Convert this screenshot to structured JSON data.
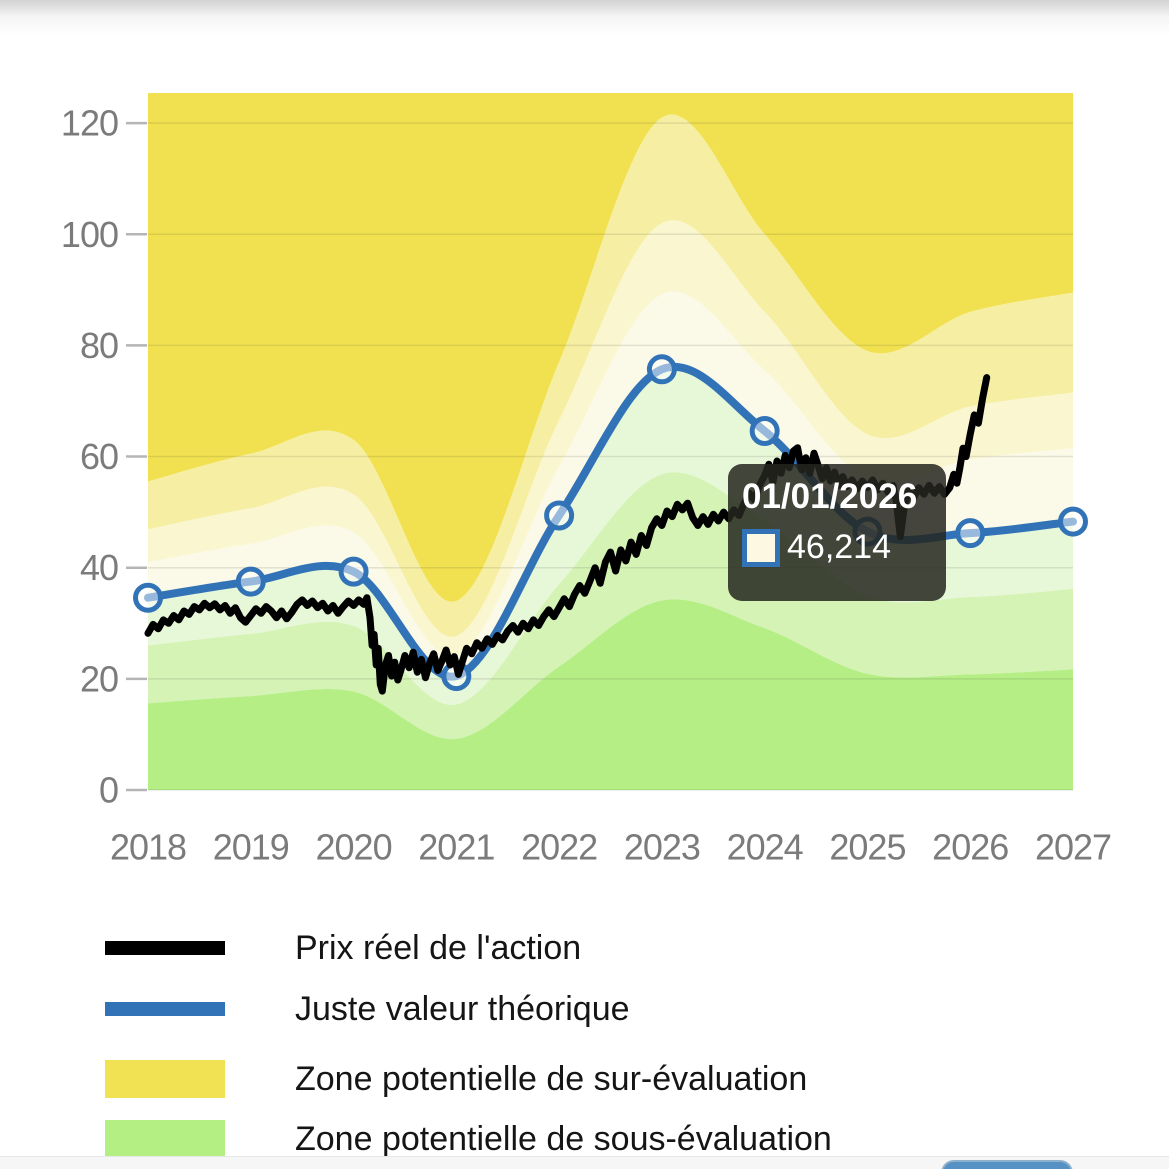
{
  "chart_data": {
    "type": "area",
    "title": "",
    "xlabel": "",
    "ylabel": "",
    "x_ticks": [
      "2018",
      "2019",
      "2020",
      "2021",
      "2022",
      "2023",
      "2024",
      "2025",
      "2026",
      "2027"
    ],
    "y_ticks": [
      "0",
      "20",
      "40",
      "60",
      "80",
      "100",
      "120"
    ],
    "y_tick_values": [
      0,
      20,
      40,
      60,
      80,
      100,
      120
    ],
    "ylim": [
      0,
      125.5
    ],
    "xlim": [
      2018,
      2027
    ],
    "grid": "horizontal",
    "fair_value": {
      "name": "Juste valeur théorique",
      "color": "#3273b8",
      "years": [
        2018,
        2019,
        2020,
        2021,
        2022,
        2023,
        2024,
        2025,
        2026,
        2027
      ],
      "values": [
        34.6,
        37.5,
        39.3,
        20.5,
        49.4,
        75.7,
        64.6,
        46.5,
        46.214,
        48.3
      ]
    },
    "price": {
      "name": "Prix réel de l'action",
      "color": "#000000",
      "points": [
        [
          2018.0,
          28.2
        ],
        [
          2018.05,
          29.8
        ],
        [
          2018.1,
          29.0
        ],
        [
          2018.15,
          30.6
        ],
        [
          2018.2,
          30.0
        ],
        [
          2018.25,
          31.4
        ],
        [
          2018.3,
          30.6
        ],
        [
          2018.35,
          32.2
        ],
        [
          2018.4,
          31.6
        ],
        [
          2018.45,
          33.0
        ],
        [
          2018.5,
          32.4
        ],
        [
          2018.55,
          33.6
        ],
        [
          2018.6,
          32.8
        ],
        [
          2018.65,
          33.5
        ],
        [
          2018.7,
          32.4
        ],
        [
          2018.75,
          33.2
        ],
        [
          2018.8,
          31.8
        ],
        [
          2018.85,
          32.8
        ],
        [
          2018.9,
          31.0
        ],
        [
          2018.95,
          30.2
        ],
        [
          2019.0,
          31.4
        ],
        [
          2019.05,
          32.6
        ],
        [
          2019.1,
          31.8
        ],
        [
          2019.15,
          33.0
        ],
        [
          2019.2,
          32.2
        ],
        [
          2019.25,
          31.0
        ],
        [
          2019.3,
          32.2
        ],
        [
          2019.35,
          30.8
        ],
        [
          2019.4,
          32.0
        ],
        [
          2019.45,
          33.4
        ],
        [
          2019.5,
          34.2
        ],
        [
          2019.55,
          33.2
        ],
        [
          2019.6,
          34.0
        ],
        [
          2019.65,
          32.8
        ],
        [
          2019.7,
          33.6
        ],
        [
          2019.75,
          32.2
        ],
        [
          2019.8,
          33.2
        ],
        [
          2019.85,
          31.8
        ],
        [
          2019.9,
          33.0
        ],
        [
          2019.95,
          34.0
        ],
        [
          2020.0,
          33.2
        ],
        [
          2020.05,
          34.2
        ],
        [
          2020.1,
          33.4
        ],
        [
          2020.13,
          34.6
        ],
        [
          2020.16,
          31.0
        ],
        [
          2020.18,
          26.0
        ],
        [
          2020.2,
          28.0
        ],
        [
          2020.22,
          22.5
        ],
        [
          2020.24,
          25.5
        ],
        [
          2020.26,
          19.0
        ],
        [
          2020.28,
          17.8
        ],
        [
          2020.31,
          22.5
        ],
        [
          2020.34,
          24.2
        ],
        [
          2020.37,
          20.5
        ],
        [
          2020.4,
          23.0
        ],
        [
          2020.43,
          19.8
        ],
        [
          2020.46,
          21.5
        ],
        [
          2020.5,
          24.2
        ],
        [
          2020.54,
          22.0
        ],
        [
          2020.58,
          24.8
        ],
        [
          2020.62,
          21.2
        ],
        [
          2020.66,
          23.5
        ],
        [
          2020.7,
          20.2
        ],
        [
          2020.74,
          22.8
        ],
        [
          2020.78,
          24.5
        ],
        [
          2020.82,
          21.5
        ],
        [
          2020.86,
          23.2
        ],
        [
          2020.9,
          25.2
        ],
        [
          2020.94,
          22.5
        ],
        [
          2020.98,
          24.0
        ],
        [
          2021.02,
          20.8
        ],
        [
          2021.06,
          23.2
        ],
        [
          2021.1,
          25.5
        ],
        [
          2021.15,
          24.5
        ],
        [
          2021.2,
          26.5
        ],
        [
          2021.25,
          25.5
        ],
        [
          2021.3,
          27.2
        ],
        [
          2021.35,
          26.2
        ],
        [
          2021.4,
          27.8
        ],
        [
          2021.45,
          27.0
        ],
        [
          2021.5,
          28.6
        ],
        [
          2021.55,
          29.6
        ],
        [
          2021.6,
          28.4
        ],
        [
          2021.65,
          30.0
        ],
        [
          2021.7,
          29.0
        ],
        [
          2021.75,
          30.6
        ],
        [
          2021.8,
          29.6
        ],
        [
          2021.85,
          31.2
        ],
        [
          2021.9,
          32.4
        ],
        [
          2021.95,
          31.2
        ],
        [
          2022.0,
          32.8
        ],
        [
          2022.05,
          34.4
        ],
        [
          2022.1,
          33.0
        ],
        [
          2022.15,
          35.2
        ],
        [
          2022.2,
          36.8
        ],
        [
          2022.25,
          35.4
        ],
        [
          2022.3,
          37.6
        ],
        [
          2022.35,
          40.0
        ],
        [
          2022.4,
          37.2
        ],
        [
          2022.45,
          41.0
        ],
        [
          2022.5,
          42.8
        ],
        [
          2022.55,
          39.4
        ],
        [
          2022.6,
          43.2
        ],
        [
          2022.65,
          41.2
        ],
        [
          2022.7,
          44.6
        ],
        [
          2022.75,
          42.4
        ],
        [
          2022.8,
          45.8
        ],
        [
          2022.85,
          44.0
        ],
        [
          2022.9,
          47.2
        ],
        [
          2022.95,
          48.8
        ],
        [
          2023.0,
          47.6
        ],
        [
          2023.05,
          50.2
        ],
        [
          2023.1,
          49.2
        ],
        [
          2023.15,
          51.4
        ],
        [
          2023.2,
          50.4
        ],
        [
          2023.25,
          51.6
        ],
        [
          2023.3,
          49.0
        ],
        [
          2023.35,
          47.6
        ],
        [
          2023.4,
          49.2
        ],
        [
          2023.45,
          47.8
        ],
        [
          2023.5,
          49.6
        ],
        [
          2023.55,
          48.4
        ],
        [
          2023.6,
          50.0
        ],
        [
          2023.65,
          48.8
        ],
        [
          2023.7,
          50.4
        ],
        [
          2023.75,
          49.4
        ],
        [
          2023.8,
          51.6
        ],
        [
          2023.85,
          53.4
        ],
        [
          2023.9,
          52.2
        ],
        [
          2023.95,
          54.8
        ],
        [
          2024.0,
          56.6
        ],
        [
          2024.04,
          58.6
        ],
        [
          2024.08,
          55.4
        ],
        [
          2024.12,
          59.2
        ],
        [
          2024.16,
          57.0
        ],
        [
          2024.2,
          60.2
        ],
        [
          2024.24,
          58.0
        ],
        [
          2024.28,
          61.0
        ],
        [
          2024.32,
          61.6
        ],
        [
          2024.36,
          57.6
        ],
        [
          2024.4,
          59.8
        ],
        [
          2024.44,
          57.0
        ],
        [
          2024.48,
          60.6
        ],
        [
          2024.52,
          58.4
        ],
        [
          2024.56,
          56.0
        ],
        [
          2024.6,
          58.0
        ],
        [
          2024.64,
          55.6
        ],
        [
          2024.68,
          57.2
        ],
        [
          2024.72,
          54.8
        ],
        [
          2024.76,
          56.4
        ],
        [
          2024.8,
          54.6
        ],
        [
          2024.85,
          55.8
        ],
        [
          2024.9,
          54.2
        ],
        [
          2024.95,
          55.6
        ],
        [
          2025.0,
          54.4
        ],
        [
          2025.05,
          55.8
        ],
        [
          2025.1,
          54.0
        ],
        [
          2025.15,
          55.2
        ],
        [
          2025.2,
          53.6
        ],
        [
          2025.25,
          54.8
        ],
        [
          2025.28,
          52.0
        ],
        [
          2025.32,
          45.6
        ],
        [
          2025.36,
          51.0
        ],
        [
          2025.4,
          53.8
        ],
        [
          2025.45,
          52.6
        ],
        [
          2025.5,
          54.4
        ],
        [
          2025.55,
          53.2
        ],
        [
          2025.6,
          54.8
        ],
        [
          2025.65,
          53.4
        ],
        [
          2025.7,
          54.6
        ],
        [
          2025.75,
          53.2
        ],
        [
          2025.8,
          54.4
        ],
        [
          2025.84,
          56.8
        ],
        [
          2025.87,
          55.2
        ],
        [
          2025.9,
          58.0
        ],
        [
          2025.93,
          61.5
        ],
        [
          2025.96,
          60.0
        ],
        [
          2026.0,
          64.0
        ],
        [
          2026.04,
          67.5
        ],
        [
          2026.08,
          66.0
        ],
        [
          2026.12,
          70.5
        ],
        [
          2026.16,
          74.2
        ]
      ]
    },
    "bands": {
      "note": "smoothed boundaries as multiples of fair value",
      "colors_top_to_bottom": [
        "#f1e151",
        "#f6efa3",
        "#faf6d0",
        "#fbf9e7",
        "#e7f8d8",
        "#d4f3b5",
        "#b4ee85"
      ],
      "boundaries": [
        {
          "multiple": 1.6,
          "values": [
            55.5,
            60.5,
            63.0,
            34.0,
            77.0,
            121.0,
            100.0,
            79.0,
            86.0,
            89.5
          ]
        },
        {
          "multiple": 1.35,
          "values": [
            46.9,
            50.7,
            53.2,
            27.7,
            66.5,
            102.0,
            86.0,
            64.0,
            69.0,
            71.5
          ]
        },
        {
          "multiple": 1.18,
          "values": [
            41.0,
            44.3,
            46.4,
            24.2,
            58.2,
            89.2,
            75.5,
            56.0,
            59.5,
            61.5
          ]
        },
        {
          "multiple": 1.0,
          "values": [
            34.6,
            37.5,
            39.3,
            20.5,
            49.4,
            75.7,
            64.6,
            46.5,
            46.2,
            48.3
          ]
        },
        {
          "multiple": 0.75,
          "values": [
            26.0,
            28.1,
            29.5,
            15.4,
            37.0,
            56.8,
            48.5,
            34.9,
            34.7,
            36.2
          ]
        },
        {
          "multiple": 0.45,
          "values": [
            15.6,
            16.9,
            17.7,
            9.2,
            22.2,
            34.1,
            29.1,
            20.9,
            20.8,
            21.7
          ]
        }
      ]
    }
  },
  "tooltip": {
    "date": "01/01/2026",
    "value": "46,214",
    "swatch_fill": "#fcf8e1",
    "swatch_border": "#3273b8"
  },
  "legend": {
    "items": [
      {
        "label": "Prix réel de l'action",
        "shape": "line",
        "color": "#000000"
      },
      {
        "label": "Juste valeur théorique",
        "shape": "line",
        "color": "#3273b8"
      },
      {
        "label": "Zone potentielle de sur-évaluation",
        "shape": "rect",
        "color": "#f0e253"
      },
      {
        "label": "Zone potentielle de sous-évaluation",
        "shape": "rect",
        "color": "#b3ef83"
      }
    ]
  },
  "footer": {
    "button_color": "#5591c2"
  }
}
